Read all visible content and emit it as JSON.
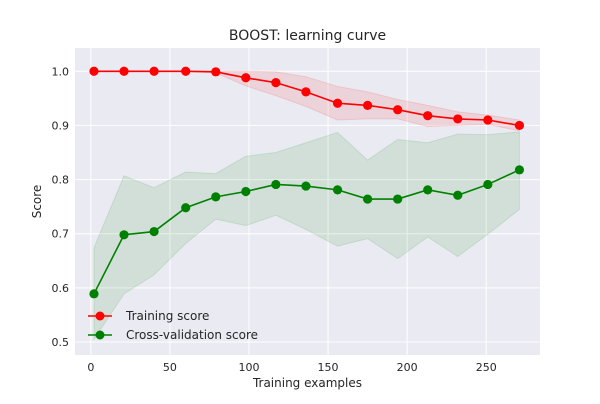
{
  "chart_data": {
    "type": "line",
    "title": "BOOST: learning curve",
    "xlabel": "Training examples",
    "ylabel": "Score",
    "xlim": [
      -10,
      284
    ],
    "ylim": [
      0.476,
      1.043
    ],
    "xticks": [
      0,
      50,
      100,
      150,
      200,
      250
    ],
    "yticks": [
      0.5,
      0.6,
      0.7,
      0.8,
      0.9,
      1.0
    ],
    "xtick_labels": [
      "0",
      "50",
      "100",
      "150",
      "200",
      "250"
    ],
    "ytick_labels": [
      "0.5",
      "0.6",
      "0.7",
      "0.8",
      "0.9",
      "1.0"
    ],
    "grid": true,
    "legend_position": "lower-left",
    "x": [
      2,
      21,
      40,
      60,
      79,
      98,
      117,
      136,
      156,
      175,
      194,
      213,
      232,
      251,
      271
    ],
    "series": [
      {
        "name": "Training score",
        "color": "#ff0000",
        "values": [
          1.0,
          1.0,
          1.0,
          1.0,
          0.999,
          0.988,
          0.979,
          0.962,
          0.941,
          0.937,
          0.929,
          0.918,
          0.912,
          0.91,
          0.9
        ],
        "band_upper": [
          1.0,
          1.0,
          1.0,
          1.0,
          1.0,
          1.0,
          0.999,
          0.99,
          0.972,
          0.962,
          0.948,
          0.937,
          0.925,
          0.919,
          0.91
        ],
        "band_lower": [
          1.0,
          1.0,
          1.0,
          1.0,
          0.997,
          0.973,
          0.955,
          0.935,
          0.91,
          0.912,
          0.912,
          0.898,
          0.9,
          0.902,
          0.89
        ]
      },
      {
        "name": "Cross-validation score",
        "color": "#008000",
        "values": [
          0.589,
          0.698,
          0.704,
          0.748,
          0.768,
          0.778,
          0.791,
          0.788,
          0.781,
          0.764,
          0.764,
          0.781,
          0.771,
          0.791,
          0.818
        ],
        "band_upper": [
          0.674,
          0.807,
          0.785,
          0.814,
          0.811,
          0.843,
          0.85,
          0.868,
          0.887,
          0.836,
          0.874,
          0.868,
          0.884,
          0.883,
          0.888
        ],
        "band_lower": [
          0.505,
          0.589,
          0.624,
          0.682,
          0.727,
          0.715,
          0.734,
          0.708,
          0.677,
          0.691,
          0.654,
          0.694,
          0.658,
          0.699,
          0.745
        ]
      }
    ]
  }
}
